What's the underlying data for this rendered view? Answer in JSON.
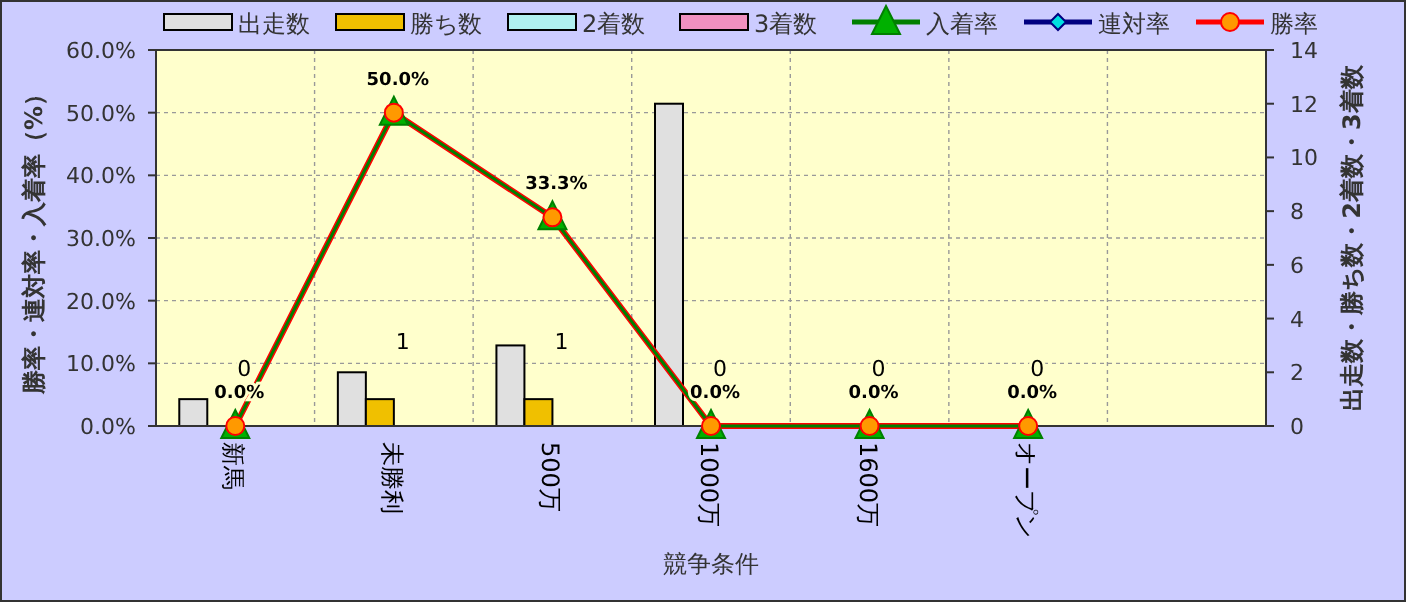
{
  "chart_data": {
    "type": "bar",
    "xlabel": "競争条件",
    "ylabel": "勝率・連対率・入着率（%）",
    "y2label": "出走数・勝ち数・2着数・3着数",
    "categories": [
      "新馬",
      "未勝利",
      "500万",
      "1000万",
      "1600万",
      "オープン",
      null
    ],
    "ylim": [
      0,
      60
    ],
    "yticks": [
      {
        "value": 0,
        "label": "0.0%"
      },
      {
        "value": 10,
        "label": "10.0%"
      },
      {
        "value": 20,
        "label": "20.0%"
      },
      {
        "value": 30,
        "label": "30.0%"
      },
      {
        "value": 40,
        "label": "40.0%"
      },
      {
        "value": 50,
        "label": "50.0%"
      },
      {
        "value": 60,
        "label": "60.0%"
      }
    ],
    "y2lim": [
      0,
      14
    ],
    "y2ticks": [
      0,
      2,
      4,
      6,
      8,
      10,
      12,
      14
    ],
    "grid": true,
    "legend": "top",
    "series": [
      {
        "name": "出走数",
        "axis": "y2",
        "color": "#e0e0e0",
        "values": [
          1,
          2,
          3,
          12,
          0,
          0,
          null
        ]
      },
      {
        "name": "勝ち数",
        "axis": "y2",
        "color": "#f0c000",
        "values": [
          0,
          1,
          1,
          0,
          0,
          0,
          null
        ],
        "value_labels": [
          "0",
          "1",
          "1",
          "0",
          "0",
          "0",
          null
        ]
      },
      {
        "name": "2着数",
        "axis": "y2",
        "color": "#b0f0f0",
        "values": [
          0,
          0,
          0,
          0,
          0,
          0,
          null
        ]
      },
      {
        "name": "3着数",
        "axis": "y2",
        "color": "#f090c0",
        "values": [
          0,
          0,
          0,
          0,
          0,
          0,
          null
        ]
      },
      {
        "name": "入着率",
        "type": "line",
        "color": "#008000",
        "marker": "triangle",
        "values": [
          0,
          50,
          33.3,
          0,
          0,
          0,
          null
        ]
      },
      {
        "name": "連対率",
        "type": "line",
        "color": "#000080",
        "marker": "diamond",
        "values": [
          null,
          null,
          null,
          null,
          null,
          null,
          null
        ]
      },
      {
        "name": "勝率",
        "type": "line",
        "color": "#ff0000",
        "marker": "circle",
        "values": [
          0,
          50,
          33.3,
          0,
          0,
          0,
          null
        ],
        "value_labels": [
          "0.0%",
          "50.0%",
          "33.3%",
          "0.0%",
          "0.0%",
          "0.0%",
          null
        ]
      }
    ]
  }
}
